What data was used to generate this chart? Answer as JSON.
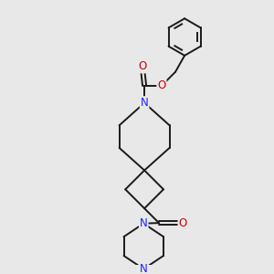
{
  "background_color": "#e8e8e8",
  "bond_color": "#1a1a1a",
  "N_color": "#2020ff",
  "O_color": "#cc0000",
  "figsize": [
    3.0,
    3.0
  ],
  "dpi": 100,
  "xlim": [
    0,
    10
  ],
  "ylim": [
    0,
    10
  ]
}
